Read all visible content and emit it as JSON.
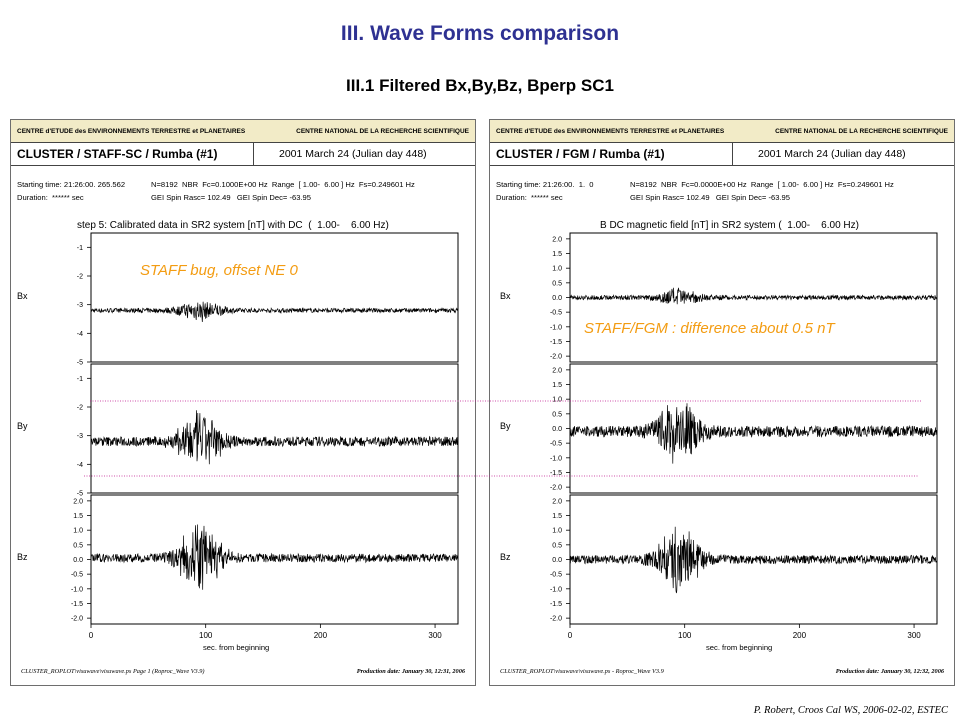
{
  "slide": {
    "title": "III. Wave Forms comparison",
    "subtitle": "III.1  Filtered Bx,By,Bz, Bperp SC1",
    "credit": "P. Robert, Croos Cal WS, 2006-02-02, ESTEC"
  },
  "annotations": {
    "left": "STAFF bug, offset NE 0",
    "right": "STAFF/FGM : difference about 0.5 nT"
  },
  "panels": [
    {
      "header_left": "CENTRE d'ETUDE des ENVIRONNEMENTS TERRESTRE et PLANETAIRES",
      "header_right": "CENTRE NATIONAL DE LA RECHERCHE SCIENTIFIQUE",
      "title": "CLUSTER / STAFF-SC / Rumba  (#1)",
      "date": "2001 March 24  (Julian day 448)",
      "info_line1_left": "Starting time: 21:26:00. 265.562",
      "info_line1_right": "N=8192  NBR  Fc=0.1000E+00 Hz  Range  [ 1.00-  6.00 ] Hz  Fs=0.249601 Hz",
      "info_line2_left": "Duration:  ****** sec",
      "info_line2_right": "GEI Spin Rasc= 102.49   GEI Spin Dec= -63.95",
      "caption": "step 5: Calibrated data in SR2 system [nT] with DC  (  1.00-    6.00 Hz)",
      "xlabel": "sec. from beginning",
      "footer_left": "CLUSTER_ROPLOT\\visuwave\\visuwave.ps   Page 1  (Roproc_Wave V3.9)",
      "footer_right": "Production date: January 30, 12:31, 2006"
    },
    {
      "header_left": "CENTRE d'ETUDE des ENVIRONNEMENTS TERRESTRE et PLANETAIRES",
      "header_right": "CENTRE NATIONAL DE LA RECHERCHE SCIENTIFIQUE",
      "title": "CLUSTER / FGM / Rumba (#1)",
      "date": "2001 March 24  (Julian day 448)",
      "info_line1_left": "Starting time: 21:26:00.  1.  0",
      "info_line1_right": "N=8192  NBR  Fc=0.0000E+00 Hz  Range  [ 1.00-  6.00 ] Hz  Fs=0.249601 Hz",
      "info_line2_left": "Duration:  ****** sec",
      "info_line2_right": "GEI Spin Rasc= 102.49   GEI Spin Dec= -63.95",
      "caption": "B DC magnetic field [nT] in SR2 system (  1.00-    6.00 Hz)",
      "xlabel": "sec. from beginning",
      "footer_left": "CLUSTER_ROPLOT\\visuwave\\visuwave.ps  -  Roproc_Wave V3.9",
      "footer_right": "Production date: January 30, 12:32, 2006"
    }
  ],
  "chart_data": [
    {
      "type": "line",
      "title": "CLUSTER / STAFF-SC / Rumba (#1)",
      "xlabel": "sec. from beginning",
      "xlim": [
        0,
        320
      ],
      "xticks": [
        0,
        100,
        200,
        300
      ],
      "series": [
        {
          "name": "Bx",
          "ylim": [
            -5,
            -0.5
          ],
          "yticks": [
            -1,
            -2,
            -3,
            -4,
            -5
          ],
          "baseline": -3.2,
          "noise": 0.07,
          "burst_center": 95,
          "burst_width": 18,
          "burst_amp": 0.35
        },
        {
          "name": "By",
          "ylim": [
            -5,
            -0.5
          ],
          "yticks": [
            -1,
            -2,
            -3,
            -4,
            -5
          ],
          "baseline": -3.2,
          "noise": 0.15,
          "burst_center": 95,
          "burst_width": 18,
          "burst_amp": 1.0
        },
        {
          "name": "Bz",
          "ylim": [
            -2.2,
            2.2
          ],
          "yticks": [
            2.0,
            1.5,
            1.0,
            0.5,
            0.0,
            -0.5,
            -1.0,
            -1.5,
            -2.0
          ],
          "baseline": 0.05,
          "noise": 0.13,
          "burst_center": 95,
          "burst_width": 18,
          "burst_amp": 1.2
        }
      ]
    },
    {
      "type": "line",
      "title": "CLUSTER / FGM / Rumba (#1)",
      "xlabel": "sec. from beginning",
      "xlim": [
        0,
        320
      ],
      "xticks": [
        0,
        100,
        200,
        300
      ],
      "series": [
        {
          "name": "Bx",
          "ylim": [
            -2.2,
            2.2
          ],
          "yticks": [
            2.0,
            1.5,
            1.0,
            0.5,
            0.0,
            -0.5,
            -1.0,
            -1.5,
            -2.0
          ],
          "baseline": 0.0,
          "noise": 0.07,
          "burst_center": 95,
          "burst_width": 18,
          "burst_amp": 0.3
        },
        {
          "name": "By",
          "ylim": [
            -2.2,
            2.2
          ],
          "yticks": [
            2.0,
            1.5,
            1.0,
            0.5,
            0.0,
            -0.5,
            -1.0,
            -1.5,
            -2.0
          ],
          "baseline": -0.1,
          "noise": 0.17,
          "burst_center": 95,
          "burst_width": 18,
          "burst_amp": 1.1
        },
        {
          "name": "Bz",
          "ylim": [
            -2.2,
            2.2
          ],
          "yticks": [
            2.0,
            1.5,
            1.0,
            0.5,
            0.0,
            -0.5,
            -1.0,
            -1.5,
            -2.0
          ],
          "baseline": 0.0,
          "noise": 0.13,
          "burst_center": 95,
          "burst_width": 18,
          "burst_amp": 1.2
        }
      ]
    }
  ],
  "colors": {
    "title": "#2e3192",
    "annotation": "#f39c12",
    "guide": "#c0168f",
    "trace": "#000000"
  }
}
